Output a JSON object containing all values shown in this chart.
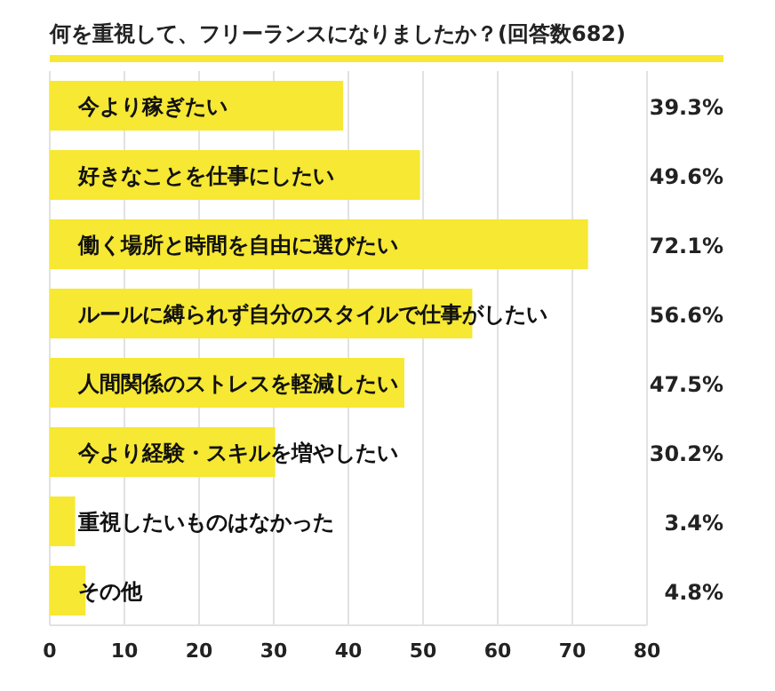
{
  "chart_data": {
    "type": "bar",
    "orientation": "horizontal",
    "title": "何を重視して、フリーランスになりましたか？(回答数682)",
    "categories": [
      "今より稼ぎたい",
      "好きなことを仕事にしたい",
      "働く場所と時間を自由に選びたい",
      "ルールに縛られず自分のスタイルで仕事がしたい",
      "人間関係のストレスを軽減したい",
      "今より経験・スキルを増やしたい",
      "重視したいものはなかった",
      "その他"
    ],
    "values": [
      39.3,
      49.6,
      72.1,
      56.6,
      47.5,
      30.2,
      3.4,
      4.8
    ],
    "value_labels": [
      "39.3%",
      "49.6%",
      "72.1%",
      "56.6%",
      "47.5%",
      "30.2%",
      "3.4%",
      "4.8%"
    ],
    "color": "#f6e833",
    "xlim": [
      0,
      80
    ],
    "xticks": [
      0,
      10,
      20,
      30,
      40,
      50,
      60,
      70,
      80
    ],
    "grid": "x"
  }
}
